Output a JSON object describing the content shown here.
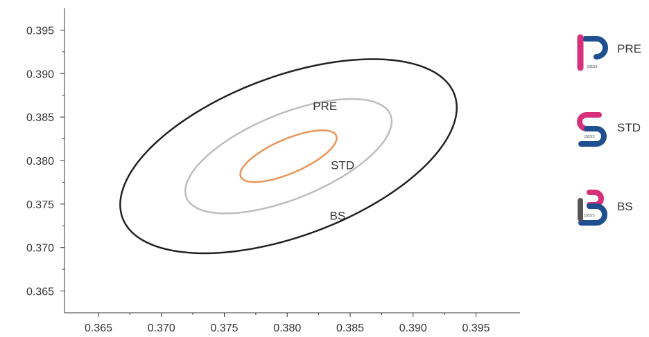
{
  "chart_data": {
    "type": "contour",
    "title": "",
    "xlabel": "",
    "ylabel": "",
    "xlim": [
      0.3623,
      0.3985
    ],
    "ylim": [
      0.3625,
      0.3975
    ],
    "x_ticks": [
      "0.365",
      "0.370",
      "0.375",
      "0.380",
      "0.385",
      "0.390",
      "0.395"
    ],
    "y_ticks": [
      "0.395",
      "0.390",
      "0.385",
      "0.380",
      "0.375",
      "0.370",
      "0.365"
    ],
    "series": [
      {
        "name": "PRE",
        "color": "#e8955a",
        "center": [
          0.3801,
          0.3805
        ],
        "semi_axes": [
          0.0045,
          0.0018
        ],
        "angle_deg": 35
      },
      {
        "name": "STD",
        "color": "#bdbdbd",
        "center": [
          0.3801,
          0.3805
        ],
        "semi_axes": [
          0.0095,
          0.0045
        ],
        "angle_deg": 35
      },
      {
        "name": "BS",
        "color": "#222222",
        "center": [
          0.3801,
          0.3805
        ],
        "semi_axes": [
          0.0152,
          0.0085
        ],
        "angle_deg": 35
      }
    ],
    "legend": {
      "placement": "right",
      "items": [
        {
          "name": "PRE",
          "icon": "p-pass-logo-icon",
          "badge": "pass"
        },
        {
          "name": "STD",
          "icon": "s-pass-logo-icon",
          "badge": "pass"
        },
        {
          "name": "BS",
          "icon": "b-pass-logo-icon",
          "badge": "pass"
        }
      ]
    },
    "colors": {
      "blue": "#1f4f8f",
      "magenta": "#d6307a",
      "gray": "#555555"
    }
  }
}
